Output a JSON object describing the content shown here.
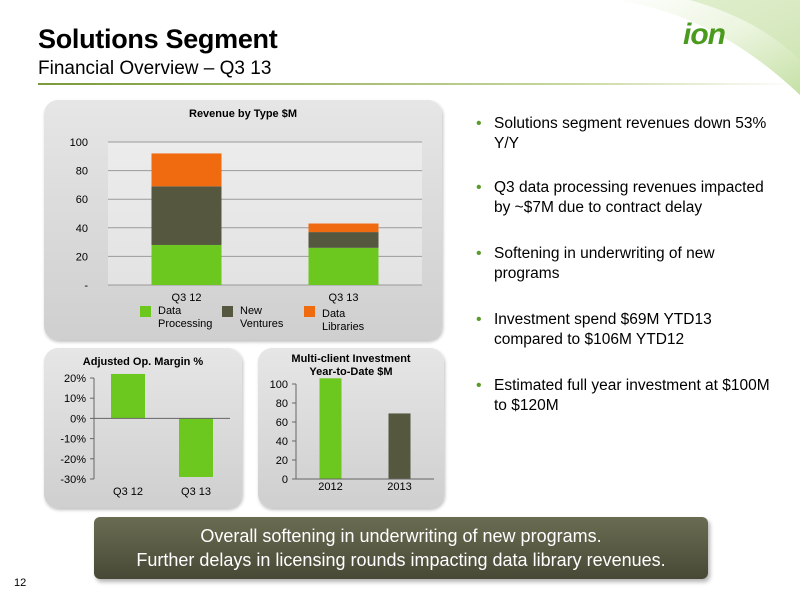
{
  "header": {
    "title": "Solutions Segment",
    "subtitle": "Financial Overview – Q3 13",
    "logo_text": "ion"
  },
  "bullets": [
    "Solutions segment revenues down 53% Y/Y",
    "Q3 data processing revenues impacted by ~$7M due to contract delay",
    "Softening in underwriting of new programs",
    "Investment spend $69M YTD13 compared to $106M YTD12",
    "Estimated full year investment at $100M to $120M"
  ],
  "banner": {
    "line1": "Overall softening in underwriting of new programs.",
    "line2": "Further delays in licensing rounds impacting data library revenues."
  },
  "page_number": "12",
  "colors": {
    "accent_green": "#6cc81e",
    "dark_olive": "#55573f",
    "orange": "#f06a10"
  },
  "chart_data": [
    {
      "type": "bar",
      "stacked": true,
      "title": "Revenue by Type $M",
      "categories": [
        "Q3 12",
        "Q3 13"
      ],
      "series": [
        {
          "name": "Data Processing",
          "values": [
            28,
            26
          ],
          "color": "#6cc81e"
        },
        {
          "name": "New Ventures",
          "values": [
            41,
            11
          ],
          "color": "#55573f"
        },
        {
          "name": "Data Libraries",
          "values": [
            23,
            6
          ],
          "color": "#f06a10"
        }
      ],
      "ylim": [
        0,
        100
      ],
      "yticks": [
        0,
        20,
        40,
        60,
        80,
        100
      ],
      "ytick_labels": [
        "-",
        "20",
        "40",
        "60",
        "80",
        "100"
      ],
      "legend": [
        {
          "line1": "Data",
          "line2": "Processing"
        },
        {
          "line1": "New",
          "line2": "Ventures"
        },
        {
          "line1": "Data",
          "line2": "Libraries"
        }
      ],
      "legend_position": "bottom",
      "grid": true
    },
    {
      "type": "bar",
      "title": "Adjusted Op. Margin %",
      "categories": [
        "Q3 12",
        "Q3 13"
      ],
      "values": [
        22,
        -29
      ],
      "colors": [
        "#6cc81e",
        "#6cc81e"
      ],
      "ylim": [
        -30,
        20
      ],
      "yticks": [
        -30,
        -20,
        -10,
        0,
        10,
        20
      ],
      "ytick_labels": [
        "-30%",
        "-20%",
        "-10%",
        "0%",
        "10%",
        "20%"
      ],
      "grid": false
    },
    {
      "type": "bar",
      "title_line1": "Multi-client Investment",
      "title_line2": "Year-to-Date $M",
      "categories": [
        "2012",
        "2013"
      ],
      "values": [
        106,
        69
      ],
      "colors": [
        "#6cc81e",
        "#55573f"
      ],
      "ylim": [
        0,
        100
      ],
      "yticks": [
        0,
        20,
        40,
        60,
        80,
        100
      ],
      "ytick_labels": [
        "0",
        "20",
        "40",
        "60",
        "80",
        "100"
      ],
      "grid": false
    }
  ]
}
